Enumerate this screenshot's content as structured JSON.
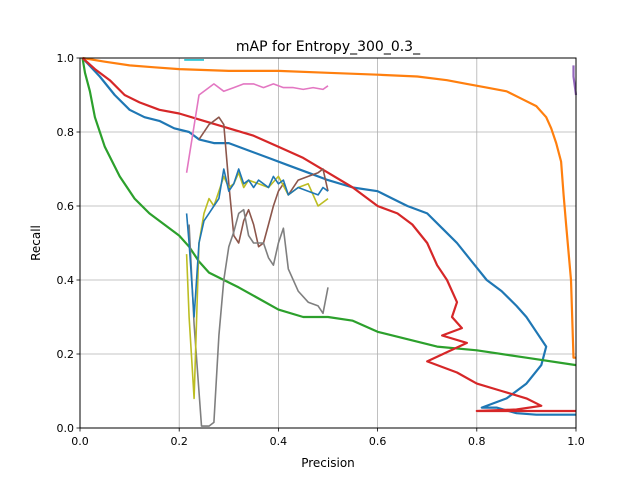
{
  "chart_data": {
    "type": "line",
    "title": "mAP for Entropy_300_0.3_",
    "xlabel": "Precision",
    "ylabel": "Recall",
    "xlim": [
      0,
      1
    ],
    "ylim": [
      0,
      1
    ],
    "xticks": [
      "0.0",
      "0.2",
      "0.4",
      "0.6",
      "0.8",
      "1.0"
    ],
    "yticks": [
      "0.0",
      "0.2",
      "0.4",
      "0.6",
      "0.8",
      "1.0"
    ],
    "grid": true,
    "series": [
      {
        "color": "#1f77b4",
        "x": [
          0.005,
          0.04,
          0.07,
          0.1,
          0.13,
          0.16,
          0.19,
          0.22,
          0.24,
          0.27,
          0.3,
          0.34,
          0.38,
          0.42,
          0.46,
          0.5,
          0.55,
          0.6,
          0.63,
          0.66,
          0.7,
          0.73,
          0.76,
          0.79,
          0.82,
          0.85,
          0.88,
          0.9,
          0.92,
          0.94,
          0.93,
          0.9,
          0.86,
          0.81,
          0.84,
          0.88,
          0.92,
          0.95,
          1.0
        ],
        "y": [
          1.0,
          0.95,
          0.9,
          0.86,
          0.84,
          0.83,
          0.81,
          0.8,
          0.78,
          0.77,
          0.77,
          0.75,
          0.73,
          0.71,
          0.69,
          0.67,
          0.65,
          0.64,
          0.62,
          0.6,
          0.58,
          0.54,
          0.5,
          0.45,
          0.4,
          0.37,
          0.33,
          0.3,
          0.26,
          0.22,
          0.17,
          0.12,
          0.08,
          0.055,
          0.055,
          0.04,
          0.036,
          0.036,
          0.036
        ]
      },
      {
        "color": "#ff7f0e",
        "x": [
          0.005,
          0.05,
          0.1,
          0.15,
          0.2,
          0.3,
          0.4,
          0.5,
          0.6,
          0.68,
          0.74,
          0.78,
          0.82,
          0.86,
          0.89,
          0.92,
          0.94,
          0.95,
          0.96,
          0.97,
          0.975,
          0.98,
          0.99,
          0.995,
          1.0
        ],
        "y": [
          1.0,
          0.99,
          0.98,
          0.975,
          0.97,
          0.965,
          0.965,
          0.96,
          0.955,
          0.95,
          0.94,
          0.93,
          0.92,
          0.91,
          0.89,
          0.87,
          0.84,
          0.81,
          0.77,
          0.72,
          0.63,
          0.55,
          0.4,
          0.19,
          0.19
        ]
      },
      {
        "color": "#2ca02c",
        "x": [
          0.005,
          0.01,
          0.02,
          0.03,
          0.05,
          0.08,
          0.11,
          0.14,
          0.17,
          0.2,
          0.22,
          0.24,
          0.26,
          0.29,
          0.32,
          0.36,
          0.4,
          0.45,
          0.5,
          0.55,
          0.6,
          0.66,
          0.72,
          0.8,
          0.9,
          1.0
        ],
        "y": [
          1.0,
          0.96,
          0.91,
          0.84,
          0.76,
          0.68,
          0.62,
          0.58,
          0.55,
          0.52,
          0.49,
          0.45,
          0.42,
          0.4,
          0.38,
          0.35,
          0.32,
          0.3,
          0.3,
          0.29,
          0.26,
          0.24,
          0.22,
          0.21,
          0.19,
          0.17
        ]
      },
      {
        "color": "#d62728",
        "x": [
          0.005,
          0.03,
          0.06,
          0.09,
          0.12,
          0.16,
          0.2,
          0.25,
          0.3,
          0.35,
          0.4,
          0.45,
          0.5,
          0.55,
          0.6,
          0.64,
          0.67,
          0.7,
          0.72,
          0.74,
          0.76,
          0.75,
          0.77,
          0.73,
          0.78,
          0.7,
          0.76,
          0.8,
          0.85,
          0.9,
          0.93,
          0.88,
          0.8,
          0.91,
          1.0
        ],
        "y": [
          1.0,
          0.97,
          0.94,
          0.9,
          0.88,
          0.86,
          0.85,
          0.83,
          0.81,
          0.79,
          0.76,
          0.73,
          0.69,
          0.65,
          0.6,
          0.58,
          0.55,
          0.5,
          0.44,
          0.4,
          0.34,
          0.3,
          0.27,
          0.25,
          0.23,
          0.18,
          0.15,
          0.12,
          0.1,
          0.08,
          0.06,
          0.05,
          0.046,
          0.046,
          0.046
        ]
      },
      {
        "color": "#9467bd",
        "x": [
          0.995,
          0.995,
          1.0
        ],
        "y": [
          0.98,
          0.95,
          0.9
        ]
      },
      {
        "color": "#8c564b",
        "x": [
          0.24,
          0.26,
          0.28,
          0.29,
          0.3,
          0.31,
          0.32,
          0.33,
          0.34,
          0.35,
          0.36,
          0.37,
          0.38,
          0.39,
          0.4,
          0.41,
          0.42,
          0.44,
          0.46,
          0.48,
          0.49,
          0.5
        ],
        "y": [
          0.78,
          0.82,
          0.84,
          0.82,
          0.66,
          0.52,
          0.5,
          0.56,
          0.59,
          0.55,
          0.49,
          0.5,
          0.55,
          0.6,
          0.64,
          0.66,
          0.63,
          0.67,
          0.68,
          0.69,
          0.7,
          0.64
        ]
      },
      {
        "color": "#e377c2",
        "x": [
          0.215,
          0.24,
          0.27,
          0.29,
          0.31,
          0.33,
          0.35,
          0.37,
          0.39,
          0.41,
          0.43,
          0.45,
          0.47,
          0.49,
          0.5
        ],
        "y": [
          0.69,
          0.9,
          0.93,
          0.91,
          0.92,
          0.93,
          0.93,
          0.92,
          0.93,
          0.92,
          0.92,
          0.915,
          0.92,
          0.915,
          0.925
        ]
      },
      {
        "color": "#7f7f7f",
        "x": [
          0.22,
          0.23,
          0.245,
          0.26,
          0.27,
          0.28,
          0.29,
          0.3,
          0.31,
          0.32,
          0.33,
          0.34,
          0.35,
          0.36,
          0.37,
          0.38,
          0.39,
          0.4,
          0.41,
          0.42,
          0.44,
          0.46,
          0.48,
          0.49,
          0.5
        ],
        "y": [
          0.55,
          0.28,
          0.005,
          0.005,
          0.015,
          0.25,
          0.4,
          0.49,
          0.53,
          0.58,
          0.59,
          0.52,
          0.5,
          0.5,
          0.5,
          0.46,
          0.44,
          0.5,
          0.54,
          0.43,
          0.37,
          0.34,
          0.33,
          0.31,
          0.38
        ]
      },
      {
        "color": "#bcbd22",
        "x": [
          0.215,
          0.22,
          0.23,
          0.24,
          0.25,
          0.26,
          0.27,
          0.28,
          0.29,
          0.3,
          0.31,
          0.32,
          0.33,
          0.34,
          0.36,
          0.38,
          0.4,
          0.42,
          0.44,
          0.46,
          0.48,
          0.5
        ],
        "y": [
          0.47,
          0.3,
          0.08,
          0.5,
          0.58,
          0.62,
          0.6,
          0.64,
          0.68,
          0.65,
          0.66,
          0.69,
          0.65,
          0.67,
          0.66,
          0.65,
          0.68,
          0.63,
          0.65,
          0.66,
          0.6,
          0.62
        ]
      },
      {
        "color": "#17becf",
        "x": [
          0.21,
          0.25
        ],
        "y": [
          0.995,
          0.995
        ]
      },
      {
        "color": "#1f77b4",
        "x": [
          0.215,
          0.22,
          0.23,
          0.24,
          0.25,
          0.26,
          0.27,
          0.28,
          0.29,
          0.3,
          0.31,
          0.32,
          0.33,
          0.34,
          0.35,
          0.36,
          0.37,
          0.38,
          0.39,
          0.4,
          0.41,
          0.42,
          0.44,
          0.46,
          0.48,
          0.49,
          0.5
        ],
        "y": [
          0.58,
          0.5,
          0.3,
          0.5,
          0.56,
          0.58,
          0.6,
          0.62,
          0.7,
          0.64,
          0.66,
          0.7,
          0.66,
          0.67,
          0.65,
          0.67,
          0.66,
          0.65,
          0.68,
          0.66,
          0.67,
          0.63,
          0.65,
          0.64,
          0.63,
          0.65,
          0.64
        ]
      }
    ]
  }
}
